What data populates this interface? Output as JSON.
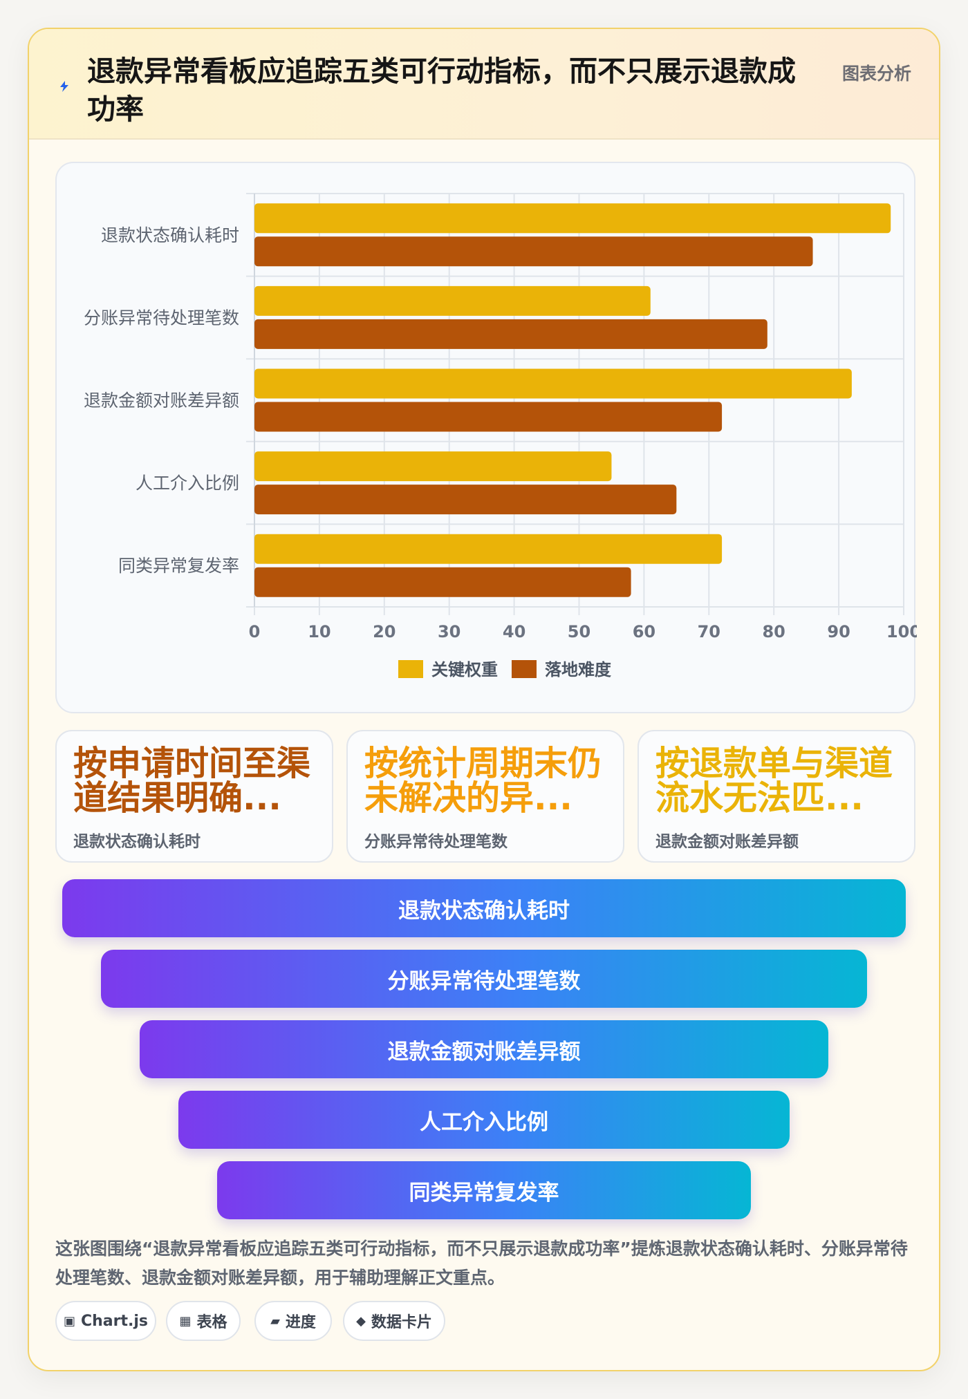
{
  "header": {
    "title": "退款异常看板应追踪五类可行动指标，而不只展示退款成功率",
    "tag": "图表分析",
    "icon": "bolt-icon"
  },
  "chart_data": {
    "type": "bar",
    "orientation": "horizontal",
    "categories": [
      "退款状态确认耗时",
      "分账异常待处理笔数",
      "退款金额对账差异额",
      "人工介入比例",
      "同类异常复发率"
    ],
    "series": [
      {
        "name": "关键权重",
        "color": "#eab308",
        "values": [
          98,
          61,
          92,
          55,
          72
        ]
      },
      {
        "name": "落地难度",
        "color": "#b45309",
        "values": [
          86,
          79,
          72,
          65,
          58
        ]
      }
    ],
    "xlim": [
      0,
      100
    ],
    "xticks": [
      0,
      10,
      20,
      30,
      40,
      50,
      60,
      70,
      80,
      90,
      100
    ],
    "grid": true,
    "legend": "bottom"
  },
  "kpis": [
    {
      "value": "按申请时间至渠道结果明确...",
      "label": "退款状态确认耗时",
      "color": "#b45309"
    },
    {
      "value": "按统计周期末仍未解决的异...",
      "label": "分账异常待处理笔数",
      "color": "#f59e0b"
    },
    {
      "value": "按退款单与渠道流水无法匹...",
      "label": "退款金额对账差异额",
      "color": "#eab308"
    }
  ],
  "funnel": [
    "退款状态确认耗时",
    "分账异常待处理笔数",
    "退款金额对账差异额",
    "人工介入比例",
    "同类异常复发率"
  ],
  "summary": "这张图围绕“退款异常看板应追踪五类可行动指标，而不只展示退款成功率”提炼退款状态确认耗时、分账异常待处理笔数、退款金额对账差异额，用于辅助理解正文重点。",
  "chips": [
    {
      "icon": "▣",
      "label": "Chart.js"
    },
    {
      "icon": "▦",
      "label": "表格"
    },
    {
      "icon": "▰",
      "label": "进度"
    },
    {
      "icon": "◆",
      "label": "数据卡片"
    }
  ]
}
